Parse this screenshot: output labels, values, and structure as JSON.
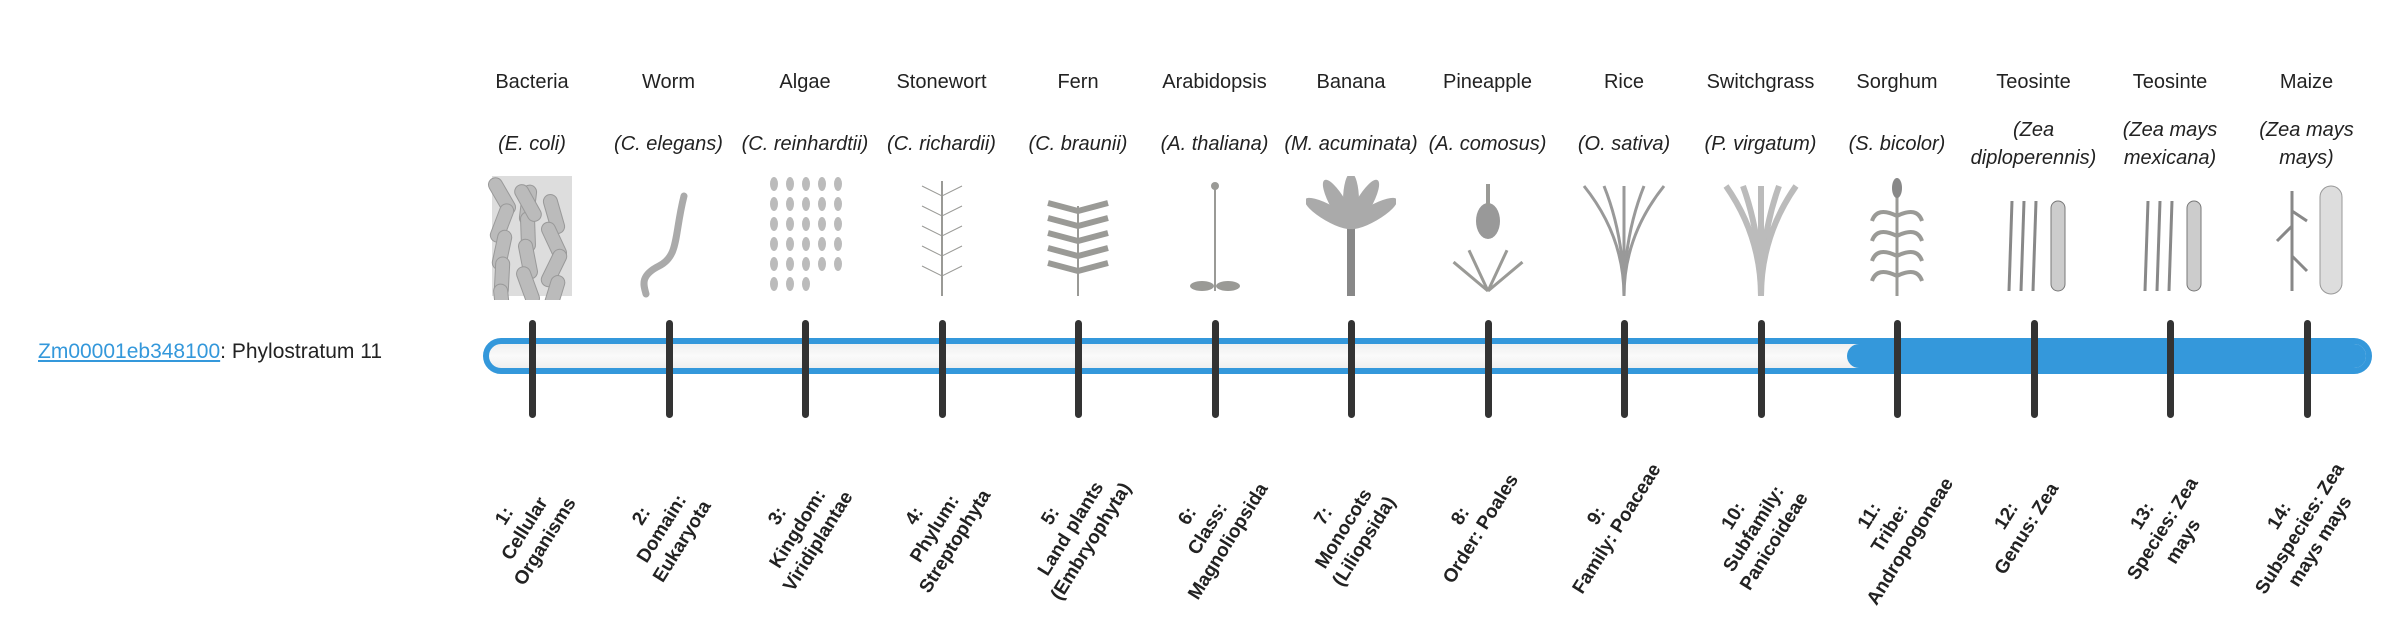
{
  "gene": {
    "id": "Zm00001eb348100",
    "separator": ":",
    "phylostratum_label": "Phylostratum 11",
    "phylostratum": 11,
    "total_strata": 14
  },
  "colors": {
    "accent": "#3498db",
    "tick": "#333333",
    "track": "#f5f5f5"
  },
  "organisms": [
    {
      "common": "Bacteria",
      "scientific": "(E. coli)",
      "icon": "bacteria-icon"
    },
    {
      "common": "Worm",
      "scientific": "(C. elegans)",
      "icon": "worm-icon"
    },
    {
      "common": "Algae",
      "scientific": "(C. reinhardtii)",
      "icon": "algae-icon"
    },
    {
      "common": "Stonewort",
      "scientific": "(C. richardii)",
      "icon": "stonewort-icon"
    },
    {
      "common": "Fern",
      "scientific": "(C. braunii)",
      "icon": "fern-icon"
    },
    {
      "common": "Arabidopsis",
      "scientific": "(A. thaliana)",
      "icon": "arabidopsis-icon"
    },
    {
      "common": "Banana",
      "scientific": "(M. acuminata)",
      "icon": "banana-icon"
    },
    {
      "common": "Pineapple",
      "scientific": "(A. comosus)",
      "icon": "pineapple-icon"
    },
    {
      "common": "Rice",
      "scientific": "(O. sativa)",
      "icon": "rice-icon"
    },
    {
      "common": "Switchgrass",
      "scientific": "(P. virgatum)",
      "icon": "switchgrass-icon"
    },
    {
      "common": "Sorghum",
      "scientific": "(S. bicolor)",
      "icon": "sorghum-icon"
    },
    {
      "common": "Teosinte",
      "scientific": "(Zea diploperennis)",
      "icon": "teosinte-icon"
    },
    {
      "common": "Teosinte",
      "scientific": "(Zea mays mexicana)",
      "icon": "teosinte-icon"
    },
    {
      "common": "Maize",
      "scientific": "(Zea mays mays)",
      "icon": "maize-icon"
    }
  ],
  "strata": [
    {
      "line1": "1:",
      "line2": "Cellular Organisms"
    },
    {
      "line1": "2:",
      "line2": "Domain: Eukaryota"
    },
    {
      "line1": "3:",
      "line2": "Kingdom: Viridiplantae"
    },
    {
      "line1": "4:",
      "line2": "Phylum: Streptophyta"
    },
    {
      "line1": "5:",
      "line2": "Land plants (Embryophyta)"
    },
    {
      "line1": "6:",
      "line2": "Class: Magnoliopsida"
    },
    {
      "line1": "7:",
      "line2": "Monocots (Liliopsida)"
    },
    {
      "line1": "8:",
      "line2": "Order: Poales"
    },
    {
      "line1": "9:",
      "line2": "Family: Poaceae"
    },
    {
      "line1": "10:",
      "line2": "Subfamily: Panicoideae"
    },
    {
      "line1": "11:",
      "line2": "Tribe: Andropogoneae"
    },
    {
      "line1": "12:",
      "line2": "Genus: Zea"
    },
    {
      "line1": "13:",
      "line2": "Species: Zea mays"
    },
    {
      "line1": "14:",
      "line2": "Subspecies: Zea mays mays"
    }
  ]
}
